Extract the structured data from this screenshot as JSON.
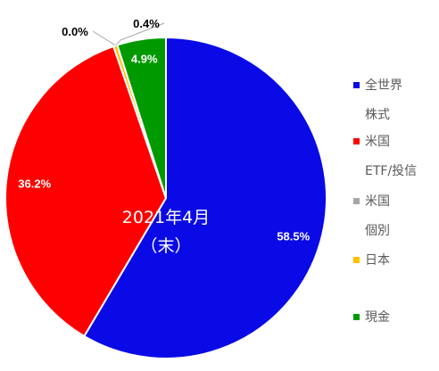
{
  "chart_data": {
    "type": "pie",
    "title": "2021年4月\n（末）",
    "categories": [
      "全世界\n株式",
      "米国\nETF/投信",
      "米国\n個別",
      "日本",
      "現金"
    ],
    "values": [
      58.5,
      36.2,
      0.0,
      0.4,
      4.9
    ],
    "value_labels": [
      "58.5%",
      "36.2%",
      "0.0%",
      "0.4%",
      "4.9%"
    ],
    "colors": [
      "#0a0ae6",
      "#ff0000",
      "#a6a6a6",
      "#ffc000",
      "#009a00"
    ],
    "legend": "right"
  }
}
